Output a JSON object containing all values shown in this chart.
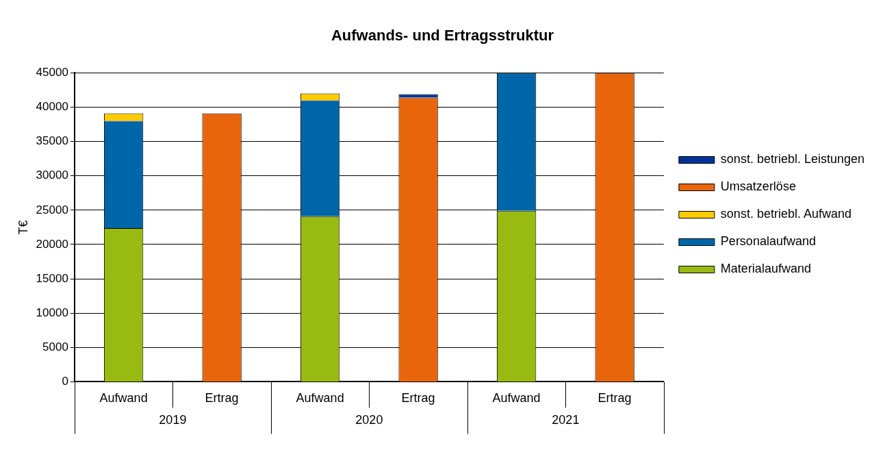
{
  "chart_data": {
    "type": "bar",
    "stacked": true,
    "title": "Aufwands- und Ertragsstruktur",
    "ylabel": "T€",
    "categories": [
      "Aufwand",
      "Ertrag",
      "Aufwand",
      "Ertrag",
      "Aufwand",
      "Ertrag"
    ],
    "annotations": [
      "2019",
      "2020",
      "2021"
    ],
    "series": [
      {
        "name": "Materialaufwand",
        "color": "#99bb11",
        "values": [
          22400,
          null,
          24100,
          null,
          24900,
          null
        ]
      },
      {
        "name": "Personalaufwand",
        "color": "#0066aa",
        "values": [
          15600,
          null,
          16900,
          null,
          20100,
          null
        ]
      },
      {
        "name": "sonst. betriebl. Aufwand",
        "color": "#ffcc00",
        "values": [
          1100,
          null,
          1000,
          null,
          null,
          null
        ]
      },
      {
        "name": "Umsatzerlöse",
        "color": "#e8650c",
        "values": [
          null,
          39100,
          null,
          41400,
          null,
          45000
        ]
      },
      {
        "name": "sonst. betriebl. Leistungen",
        "color": "#003399",
        "values": [
          null,
          null,
          null,
          500,
          null,
          null
        ]
      }
    ],
    "ylim": [
      0,
      45000
    ],
    "yticks": [
      0,
      5000,
      10000,
      15000,
      20000,
      25000,
      30000,
      35000,
      40000,
      45000
    ],
    "grid": "y",
    "legend": "right"
  }
}
